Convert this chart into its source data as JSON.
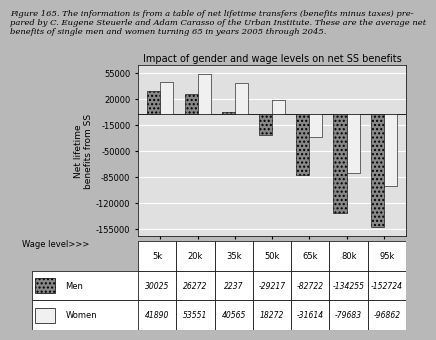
{
  "title": "Impact of gender and wage levels on net SS benefits",
  "ylabel": "Net lifetime\nbenefits from SS",
  "wage_label": "Wage level>>>",
  "categories": [
    "5k",
    "20k",
    "35k",
    "50k",
    "65k",
    "80k",
    "95k"
  ],
  "men_values": [
    30025,
    26272,
    2237,
    -29217,
    -82722,
    -134255,
    -152724
  ],
  "women_values": [
    41890,
    53551,
    40565,
    18272,
    -31614,
    -79683,
    -96862
  ],
  "ylim": [
    -165000,
    65000
  ],
  "yticks": [
    55000,
    20000,
    -15000,
    -50000,
    -85000,
    -120000,
    -155000
  ],
  "ytick_labels": [
    "55000",
    "20000",
    "-15000",
    "-50000",
    "-85000",
    "-120000",
    "-155000"
  ],
  "men_table": [
    "30025",
    "26272",
    "2237",
    "-29217",
    "-82722",
    "-134255",
    "-152724"
  ],
  "women_table": [
    "41890",
    "53551",
    "40565",
    "18272",
    "-31614",
    "-79683",
    "-96862"
  ],
  "men_color": "#888888",
  "women_color": "#f0f0f0",
  "men_hatch": "....",
  "women_hatch": "",
  "bg_color": "#b8b8b8",
  "plot_bg_color": "#e0e0e0",
  "caption": "Figure 165. The information is from a table of net lifetime transfers (benefits minus taxes) pre-\npared by C. Eugene Steuerle and Adam Carasso of the Urban Institute. These are the average net\nbenefits of single men and women turning 65 in years 2005 through 2045.",
  "bar_width": 0.35,
  "grid_color": "#ffffff",
  "title_fontsize": 7,
  "axis_fontsize": 6,
  "caption_fontsize": 6
}
